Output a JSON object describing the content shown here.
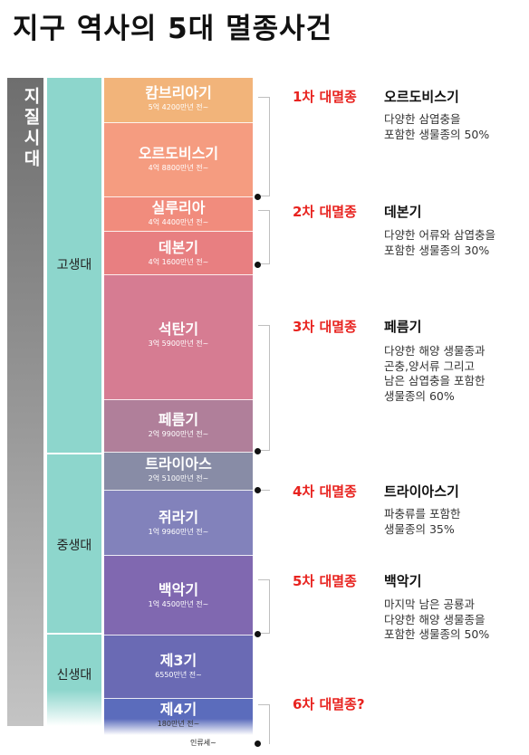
{
  "title": "지구 역사의 5대 멸종사건",
  "sidebar": {
    "label": "지질시대"
  },
  "eras": [
    {
      "name": "고생대"
    },
    {
      "name": "중생대"
    },
    {
      "name": "신생대"
    }
  ],
  "periods": [
    {
      "name": "캄브리아기",
      "age": "5억 4200만년 전~",
      "color": "#f2b47a"
    },
    {
      "name": "오르도비스기",
      "age": "4억 8800만년 전~",
      "color": "#f59c80"
    },
    {
      "name": "실루리아",
      "age": "4억 4400만년 전~",
      "color": "#f18c7d"
    },
    {
      "name": "데본기",
      "age": "4억 1600만년 전~",
      "color": "#e87f81"
    },
    {
      "name": "석탄기",
      "age": "3억 5900만년 전~",
      "color": "#d67c92"
    },
    {
      "name": "페름기",
      "age": "2억 9900만년 전~",
      "color": "#b07f9a"
    },
    {
      "name": "트라이아스",
      "age": "2억 5100만년 전~",
      "color": "#888ca6"
    },
    {
      "name": "쥐라기",
      "age": "1억 9960만년 전~",
      "color": "#8282bb"
    },
    {
      "name": "백악기",
      "age": "1억 4500만년 전~",
      "color": "#8068b0"
    },
    {
      "name": "제3기",
      "age": "6550만년 전~",
      "color": "#6a6ab4"
    },
    {
      "name": "제4기",
      "age": "180만년 전~",
      "color": "#5b6cbc"
    }
  ],
  "human_label": "인류세~",
  "extinctions": [
    {
      "label": "1차 대멸종",
      "period": "오르도비스기",
      "desc": [
        "다양한 삼엽충을",
        "포함한 생물종의 50%"
      ]
    },
    {
      "label": "2차 대멸종",
      "period": "데본기",
      "desc": [
        "다양한 어류와 삼엽충을",
        "포함한 생물종의 30%"
      ]
    },
    {
      "label": "3차 대멸종",
      "period": "페름기",
      "desc": [
        "다양한 해양 생물종과",
        "곤충,양서류 그리고",
        "남은 삼엽충을 포함한",
        "생물종의 60%"
      ]
    },
    {
      "label": "4차 대멸종",
      "period": "트라이아스기",
      "desc": [
        "파충류를 포함한",
        "생물종의 35%"
      ]
    },
    {
      "label": "5차 대멸종",
      "period": "백악기",
      "desc": [
        "마지막 남은 공룡과",
        "다양한 해양 생물종을",
        "포함한 생물종의 50%"
      ]
    },
    {
      "label": "6차 대멸종?",
      "period": "",
      "desc": []
    }
  ]
}
